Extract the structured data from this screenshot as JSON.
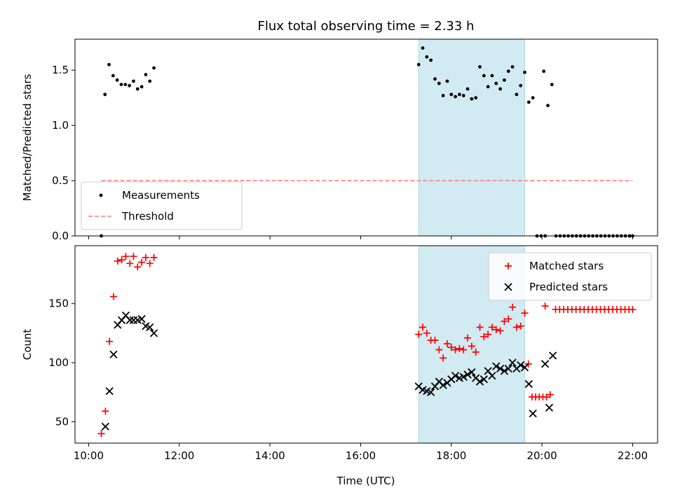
{
  "chart_data": {
    "title": "Flux total observing time = 2.33 h",
    "xlabel": "Time (UTC)",
    "xlim": [
      9.7,
      22.55
    ],
    "x_ticks": [
      10,
      12,
      14,
      16,
      18,
      20,
      22
    ],
    "x_tick_labels": [
      "10:00",
      "12:00",
      "14:00",
      "16:00",
      "18:00",
      "20:00",
      "22:00"
    ],
    "highlight_span": [
      17.28,
      19.62
    ],
    "highlight_color": "#add8e6",
    "panels": [
      {
        "type": "scatter",
        "ylabel": "Matched/Predicted stars",
        "ylim": [
          0,
          1.78
        ],
        "y_ticks": [
          0.0,
          0.5,
          1.0,
          1.5
        ],
        "y_tick_labels": [
          "0.0",
          "0.5",
          "1.0",
          "1.5"
        ],
        "legend_position": "lower-left",
        "series": [
          {
            "name": "Measurements",
            "marker": "dot",
            "color": "#000000",
            "points": [
              [
                10.28,
                0.0
              ],
              [
                10.36,
                1.28
              ],
              [
                10.45,
                1.55
              ],
              [
                10.54,
                1.45
              ],
              [
                10.63,
                1.41
              ],
              [
                10.72,
                1.37
              ],
              [
                10.81,
                1.37
              ],
              [
                10.9,
                1.36
              ],
              [
                10.99,
                1.4
              ],
              [
                11.08,
                1.33
              ],
              [
                11.17,
                1.35
              ],
              [
                11.26,
                1.46
              ],
              [
                11.35,
                1.4
              ],
              [
                11.44,
                1.52
              ],
              [
                17.28,
                1.55
              ],
              [
                17.37,
                1.7
              ],
              [
                17.46,
                1.62
              ],
              [
                17.55,
                1.59
              ],
              [
                17.64,
                1.42
              ],
              [
                17.73,
                1.38
              ],
              [
                17.82,
                1.27
              ],
              [
                17.91,
                1.4
              ],
              [
                18.0,
                1.28
              ],
              [
                18.09,
                1.26
              ],
              [
                18.18,
                1.28
              ],
              [
                18.27,
                1.27
              ],
              [
                18.36,
                1.33
              ],
              [
                18.45,
                1.24
              ],
              [
                18.54,
                1.25
              ],
              [
                18.63,
                1.53
              ],
              [
                18.72,
                1.45
              ],
              [
                18.81,
                1.35
              ],
              [
                18.9,
                1.45
              ],
              [
                18.99,
                1.38
              ],
              [
                19.08,
                1.33
              ],
              [
                19.17,
                1.41
              ],
              [
                19.26,
                1.49
              ],
              [
                19.35,
                1.53
              ],
              [
                19.44,
                1.28
              ],
              [
                19.53,
                1.36
              ],
              [
                19.62,
                1.48
              ],
              [
                19.71,
                1.21
              ],
              [
                19.8,
                1.25
              ],
              [
                19.89,
                0.0
              ],
              [
                19.98,
                0.0
              ],
              [
                20.07,
                0.0
              ],
              [
                20.04,
                1.49
              ],
              [
                20.13,
                1.18
              ],
              [
                20.22,
                1.37
              ],
              [
                20.31,
                0.0
              ],
              [
                20.4,
                0.0
              ],
              [
                20.49,
                0.0
              ],
              [
                20.58,
                0.0
              ],
              [
                20.67,
                0.0
              ],
              [
                20.76,
                0.0
              ],
              [
                20.85,
                0.0
              ],
              [
                20.94,
                0.0
              ],
              [
                21.03,
                0.0
              ],
              [
                21.12,
                0.0
              ],
              [
                21.21,
                0.0
              ],
              [
                21.3,
                0.0
              ],
              [
                21.39,
                0.0
              ],
              [
                21.48,
                0.0
              ],
              [
                21.57,
                0.0
              ],
              [
                21.66,
                0.0
              ],
              [
                21.75,
                0.0
              ],
              [
                21.84,
                0.0
              ],
              [
                21.93,
                0.0
              ],
              [
                22.0,
                0.0
              ]
            ]
          },
          {
            "name": "Threshold",
            "line": "dashed",
            "color": "#ff7f7f",
            "x": [
              10.28,
              22.0
            ],
            "y": [
              0.5,
              0.5
            ]
          }
        ]
      },
      {
        "type": "scatter",
        "ylabel": "Count",
        "ylim": [
          32,
          199
        ],
        "y_ticks": [
          50,
          100,
          150
        ],
        "y_tick_labels": [
          "50",
          "100",
          "150"
        ],
        "legend_position": "upper-right",
        "series": [
          {
            "name": "Matched stars",
            "marker": "plus",
            "color": "#ff0000",
            "points": [
              [
                10.28,
                40
              ],
              [
                10.37,
                59
              ],
              [
                10.46,
                118
              ],
              [
                10.55,
                156
              ],
              [
                10.64,
                186
              ],
              [
                10.73,
                187
              ],
              [
                10.82,
                190
              ],
              [
                10.91,
                184
              ],
              [
                10.99,
                190
              ],
              [
                11.08,
                181
              ],
              [
                11.17,
                185
              ],
              [
                11.26,
                189
              ],
              [
                11.35,
                184
              ],
              [
                11.44,
                189
              ],
              [
                17.28,
                124
              ],
              [
                17.37,
                130
              ],
              [
                17.46,
                125
              ],
              [
                17.55,
                119
              ],
              [
                17.64,
                119
              ],
              [
                17.73,
                111
              ],
              [
                17.82,
                104
              ],
              [
                17.91,
                116
              ],
              [
                18.0,
                113
              ],
              [
                18.09,
                111
              ],
              [
                18.18,
                112
              ],
              [
                18.27,
                111
              ],
              [
                18.36,
                121
              ],
              [
                18.45,
                114
              ],
              [
                18.54,
                109
              ],
              [
                18.63,
                130
              ],
              [
                18.72,
                122
              ],
              [
                18.81,
                124
              ],
              [
                18.9,
                130
              ],
              [
                18.99,
                128
              ],
              [
                19.08,
                127
              ],
              [
                19.17,
                135
              ],
              [
                19.26,
                137
              ],
              [
                19.35,
                147
              ],
              [
                19.44,
                130
              ],
              [
                19.53,
                131
              ],
              [
                19.62,
                142
              ],
              [
                19.7,
                99
              ],
              [
                19.78,
                71
              ],
              [
                19.86,
                71
              ],
              [
                19.94,
                71
              ],
              [
                20.02,
                71
              ],
              [
                20.1,
                71
              ],
              [
                20.07,
                148
              ],
              [
                20.18,
                73
              ],
              [
                20.3,
                145
              ],
              [
                20.39,
                145
              ],
              [
                20.48,
                145
              ],
              [
                20.57,
                145
              ],
              [
                20.66,
                145
              ],
              [
                20.75,
                145
              ],
              [
                20.84,
                145
              ],
              [
                20.93,
                145
              ],
              [
                21.02,
                145
              ],
              [
                21.11,
                145
              ],
              [
                21.2,
                145
              ],
              [
                21.29,
                145
              ],
              [
                21.38,
                145
              ],
              [
                21.47,
                145
              ],
              [
                21.56,
                145
              ],
              [
                21.65,
                145
              ],
              [
                21.74,
                145
              ],
              [
                21.83,
                145
              ],
              [
                21.92,
                145
              ],
              [
                22.0,
                145
              ]
            ]
          },
          {
            "name": "Predicted stars",
            "marker": "x",
            "color": "#000000",
            "points": [
              [
                10.37,
                46
              ],
              [
                10.46,
                76
              ],
              [
                10.55,
                107
              ],
              [
                10.64,
                132
              ],
              [
                10.73,
                136
              ],
              [
                10.82,
                140
              ],
              [
                10.91,
                136
              ],
              [
                10.99,
                136
              ],
              [
                11.08,
                136
              ],
              [
                11.17,
                137
              ],
              [
                11.26,
                131
              ],
              [
                11.35,
                130
              ],
              [
                11.44,
                125
              ],
              [
                17.28,
                80
              ],
              [
                17.37,
                77
              ],
              [
                17.46,
                76
              ],
              [
                17.55,
                75
              ],
              [
                17.64,
                80
              ],
              [
                17.73,
                84
              ],
              [
                17.82,
                81
              ],
              [
                17.91,
                83
              ],
              [
                18.0,
                86
              ],
              [
                18.09,
                89
              ],
              [
                18.18,
                87
              ],
              [
                18.27,
                88
              ],
              [
                18.36,
                90
              ],
              [
                18.45,
                92
              ],
              [
                18.54,
                87
              ],
              [
                18.63,
                84
              ],
              [
                18.72,
                86
              ],
              [
                18.81,
                93
              ],
              [
                18.9,
                89
              ],
              [
                18.99,
                97
              ],
              [
                19.08,
                95
              ],
              [
                19.17,
                93
              ],
              [
                19.26,
                95
              ],
              [
                19.35,
                100
              ],
              [
                19.44,
                95
              ],
              [
                19.53,
                98
              ],
              [
                19.62,
                96
              ],
              [
                19.71,
                82
              ],
              [
                19.8,
                57
              ],
              [
                20.07,
                99
              ],
              [
                20.16,
                62
              ],
              [
                20.24,
                106
              ]
            ]
          }
        ]
      }
    ]
  }
}
